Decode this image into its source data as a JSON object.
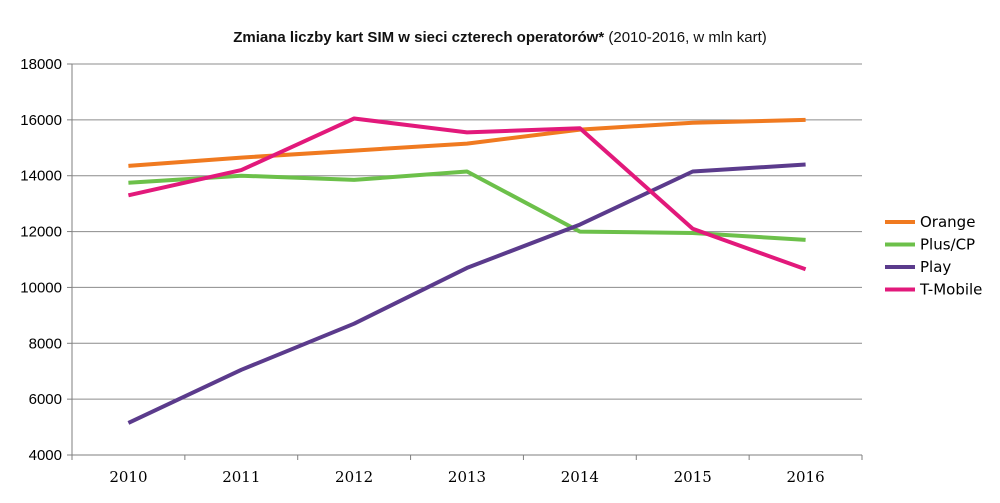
{
  "chart_data": {
    "type": "line",
    "title_bold": "Zmiana liczby kart SIM w sieci czterech operatorów*",
    "title_normal": " (2010-2016, w mln kart)",
    "xlabel": "",
    "ylabel": "",
    "categories": [
      "2010",
      "2011",
      "2012",
      "2013",
      "2014",
      "2015",
      "2016"
    ],
    "ylim": [
      4000,
      18000
    ],
    "yticks": [
      "4000",
      "6000",
      "8000",
      "10000",
      "12000",
      "14000",
      "16000",
      "18000"
    ],
    "grid": true,
    "legend_position": "right",
    "series": [
      {
        "name": "Orange",
        "color": "#f07a20",
        "values": [
          14350,
          14650,
          14900,
          15150,
          15650,
          15900,
          16000
        ]
      },
      {
        "name": "Plus/CP",
        "color": "#6cc04a",
        "values": [
          13750,
          14000,
          13850,
          14150,
          12000,
          11950,
          11700
        ]
      },
      {
        "name": "Play",
        "color": "#5b3b8c",
        "values": [
          5150,
          7050,
          8700,
          10700,
          12250,
          14150,
          14400
        ]
      },
      {
        "name": "T-Mobile",
        "color": "#e2197b",
        "values": [
          13300,
          14200,
          16050,
          15550,
          15700,
          12100,
          10650
        ]
      }
    ]
  }
}
